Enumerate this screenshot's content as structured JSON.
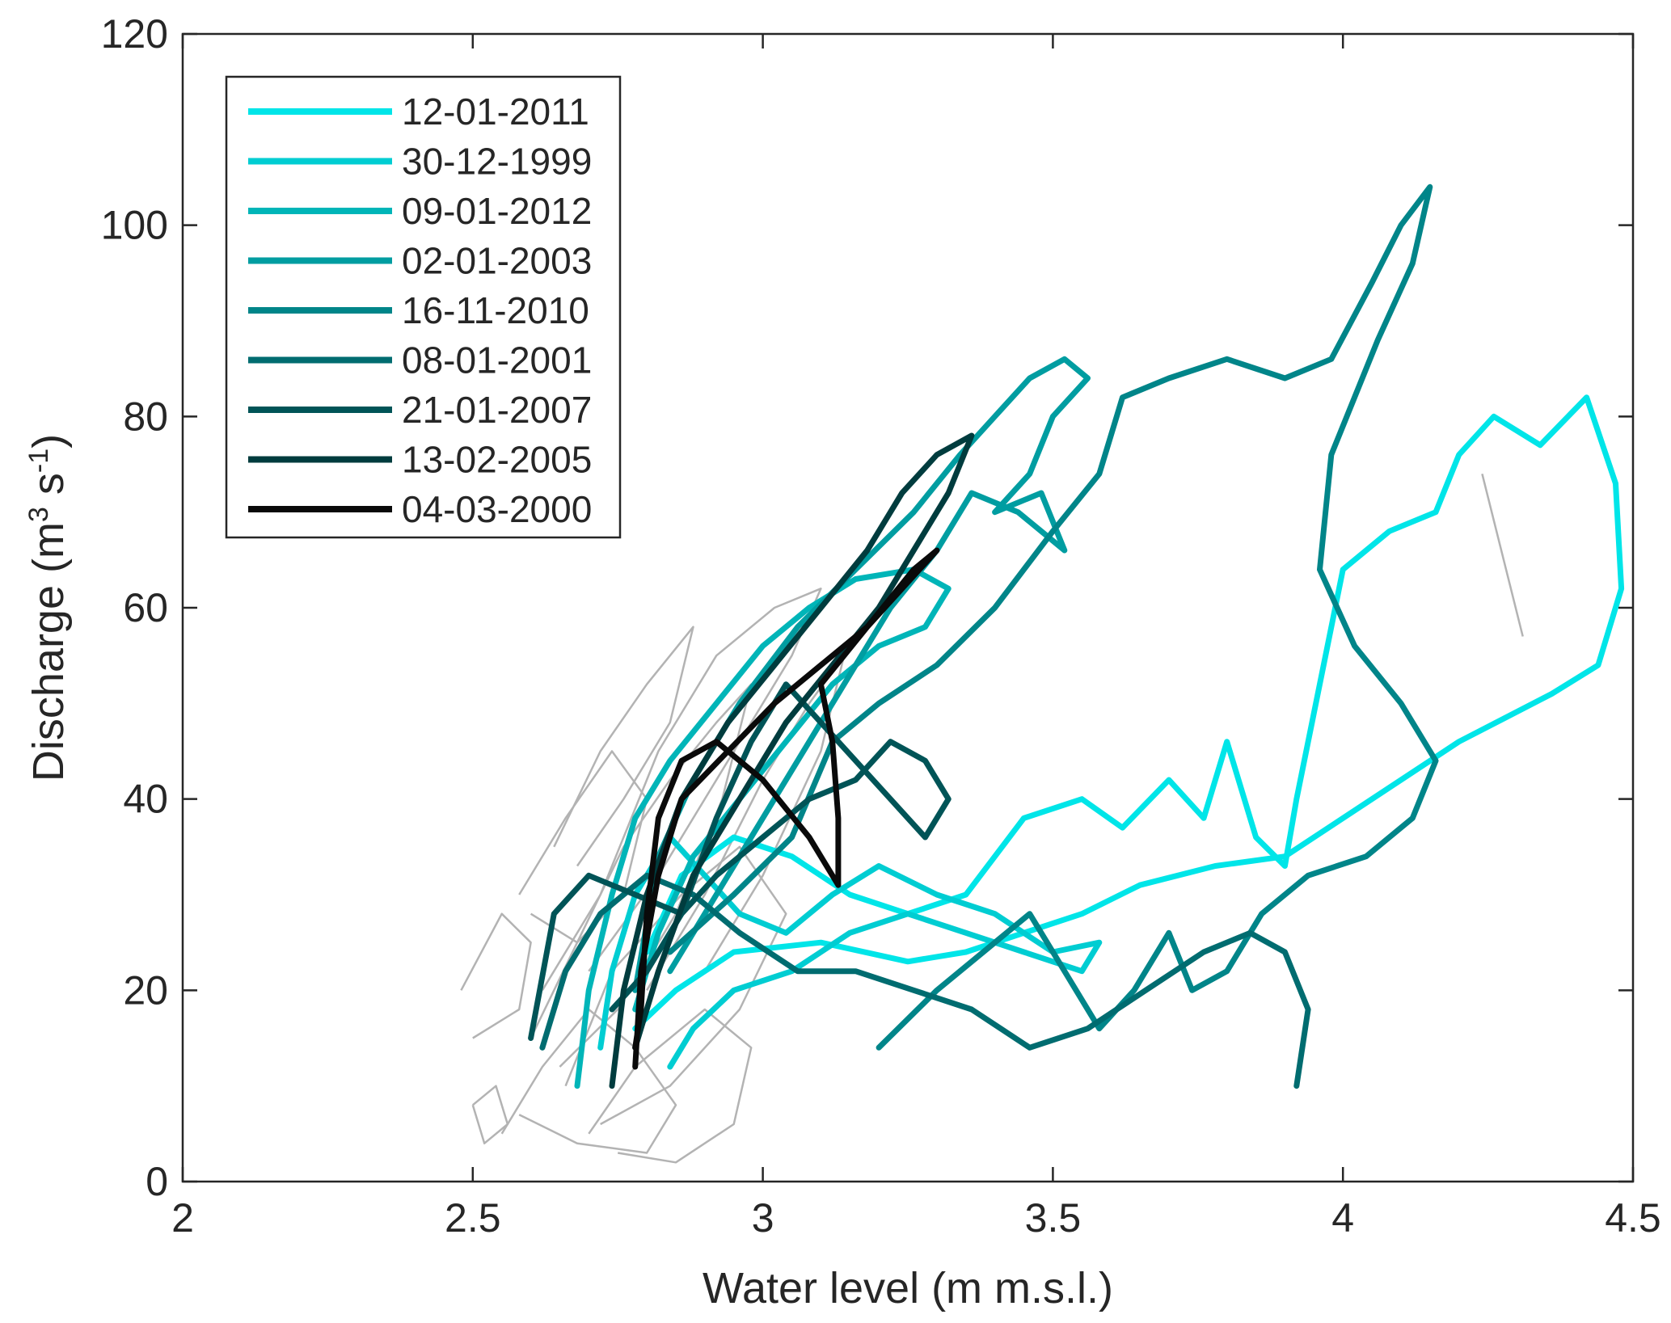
{
  "chart_data": {
    "type": "line",
    "xlabel": "Water level (m m.s.l.)",
    "ylabel": {
      "main": "Discharge (m",
      "sup1": "3",
      "mid": " s",
      "sup2": "-1",
      "end": ")"
    },
    "xlim": [
      2,
      4.5
    ],
    "ylim": [
      0,
      120
    ],
    "xticks": [
      2,
      2.5,
      3,
      3.5,
      4,
      4.5
    ],
    "xtick_labels": [
      "2",
      "2.5",
      "3",
      "3.5",
      "4",
      "4.5"
    ],
    "yticks": [
      0,
      20,
      40,
      60,
      80,
      100,
      120
    ],
    "ytick_labels": [
      "0",
      "20",
      "40",
      "60",
      "80",
      "100",
      "120"
    ],
    "grid": false,
    "legend_position": "top-left",
    "background_color": "#b3b3b3",
    "background": [
      [
        [
          2.55,
          5
        ],
        [
          2.62,
          12
        ],
        [
          2.7,
          18
        ],
        [
          2.78,
          14
        ],
        [
          2.85,
          8
        ],
        [
          2.8,
          3
        ],
        [
          2.68,
          4
        ],
        [
          2.58,
          7
        ]
      ],
      [
        [
          2.6,
          15
        ],
        [
          2.68,
          25
        ],
        [
          2.76,
          35
        ],
        [
          2.84,
          42
        ],
        [
          2.92,
          48
        ],
        [
          2.98,
          52
        ],
        [
          2.93,
          40
        ],
        [
          2.85,
          28
        ],
        [
          2.75,
          18
        ],
        [
          2.65,
          12
        ]
      ],
      [
        [
          2.62,
          20
        ],
        [
          2.72,
          30
        ],
        [
          2.82,
          45
        ],
        [
          2.92,
          55
        ],
        [
          3.02,
          60
        ],
        [
          3.1,
          62
        ],
        [
          3.05,
          55
        ],
        [
          2.95,
          45
        ],
        [
          2.82,
          32
        ],
        [
          2.7,
          22
        ]
      ],
      [
        [
          2.58,
          30
        ],
        [
          2.66,
          38
        ],
        [
          2.74,
          45
        ],
        [
          2.8,
          40
        ],
        [
          2.76,
          30
        ],
        [
          2.68,
          25
        ],
        [
          2.6,
          28
        ]
      ],
      [
        [
          2.7,
          5
        ],
        [
          2.78,
          12
        ],
        [
          2.9,
          18
        ],
        [
          2.98,
          14
        ],
        [
          2.95,
          6
        ],
        [
          2.85,
          2
        ],
        [
          2.75,
          3
        ]
      ],
      [
        [
          2.5,
          8
        ],
        [
          2.52,
          4
        ],
        [
          2.56,
          6
        ],
        [
          2.54,
          10
        ],
        [
          2.5,
          8
        ]
      ],
      [
        [
          2.66,
          10
        ],
        [
          2.74,
          22
        ],
        [
          2.86,
          30
        ],
        [
          2.96,
          35
        ],
        [
          3.04,
          28
        ],
        [
          2.96,
          18
        ],
        [
          2.84,
          10
        ],
        [
          2.72,
          6
        ]
      ],
      [
        [
          2.8,
          20
        ],
        [
          2.9,
          30
        ],
        [
          3.0,
          42
        ],
        [
          3.08,
          50
        ],
        [
          3.14,
          55
        ],
        [
          3.1,
          45
        ],
        [
          3.0,
          32
        ],
        [
          2.9,
          22
        ]
      ],
      [
        [
          2.64,
          35
        ],
        [
          2.72,
          45
        ],
        [
          2.8,
          52
        ],
        [
          2.88,
          58
        ],
        [
          2.84,
          48
        ],
        [
          2.76,
          40
        ],
        [
          2.68,
          33
        ]
      ],
      [
        [
          2.48,
          20
        ],
        [
          2.55,
          28
        ],
        [
          2.6,
          25
        ],
        [
          2.58,
          18
        ],
        [
          2.5,
          15
        ]
      ],
      [
        [
          4.24,
          74
        ],
        [
          4.31,
          57
        ]
      ]
    ],
    "series": [
      {
        "name": "12-01-2011",
        "color": "#00e5e8",
        "points": [
          [
            2.8,
            24
          ],
          [
            2.86,
            32
          ],
          [
            2.95,
            36
          ],
          [
            3.05,
            34
          ],
          [
            3.15,
            30
          ],
          [
            3.25,
            28
          ],
          [
            3.35,
            30
          ],
          [
            3.45,
            38
          ],
          [
            3.55,
            40
          ],
          [
            3.62,
            37
          ],
          [
            3.7,
            42
          ],
          [
            3.76,
            38
          ],
          [
            3.8,
            46
          ],
          [
            3.85,
            36
          ],
          [
            3.9,
            33
          ],
          [
            3.92,
            40
          ],
          [
            3.96,
            52
          ],
          [
            4.0,
            64
          ],
          [
            4.08,
            68
          ],
          [
            4.16,
            70
          ],
          [
            4.2,
            76
          ],
          [
            4.26,
            80
          ],
          [
            4.34,
            77
          ],
          [
            4.42,
            82
          ],
          [
            4.47,
            73
          ],
          [
            4.48,
            62
          ],
          [
            4.44,
            54
          ],
          [
            4.36,
            51
          ],
          [
            4.2,
            46
          ],
          [
            4.05,
            40
          ],
          [
            3.9,
            34
          ],
          [
            3.78,
            33
          ],
          [
            3.65,
            31
          ],
          [
            3.55,
            28
          ],
          [
            3.45,
            26
          ],
          [
            3.35,
            24
          ],
          [
            3.25,
            23
          ],
          [
            3.1,
            25
          ],
          [
            2.95,
            24
          ],
          [
            2.85,
            20
          ],
          [
            2.78,
            16
          ]
        ]
      },
      {
        "name": "30-12-1999",
        "color": "#00cdd2",
        "points": [
          [
            2.72,
            14
          ],
          [
            2.74,
            22
          ],
          [
            2.78,
            30
          ],
          [
            2.84,
            36
          ],
          [
            2.9,
            32
          ],
          [
            2.96,
            28
          ],
          [
            3.04,
            26
          ],
          [
            3.12,
            30
          ],
          [
            3.2,
            33
          ],
          [
            3.3,
            30
          ],
          [
            3.4,
            28
          ],
          [
            3.5,
            24
          ],
          [
            3.58,
            25
          ],
          [
            3.55,
            22
          ],
          [
            3.45,
            24
          ],
          [
            3.35,
            26
          ],
          [
            3.25,
            28
          ],
          [
            3.15,
            26
          ],
          [
            3.05,
            22
          ],
          [
            2.95,
            20
          ],
          [
            2.88,
            16
          ],
          [
            2.84,
            12
          ]
        ]
      },
      {
        "name": "09-01-2012",
        "color": "#00b5b8",
        "points": [
          [
            2.68,
            10
          ],
          [
            2.7,
            20
          ],
          [
            2.74,
            30
          ],
          [
            2.78,
            38
          ],
          [
            2.84,
            44
          ],
          [
            2.92,
            50
          ],
          [
            3.0,
            56
          ],
          [
            3.08,
            60
          ],
          [
            3.16,
            63
          ],
          [
            3.26,
            64
          ],
          [
            3.32,
            62
          ],
          [
            3.28,
            58
          ],
          [
            3.2,
            56
          ],
          [
            3.12,
            52
          ],
          [
            3.04,
            46
          ],
          [
            2.96,
            40
          ],
          [
            2.88,
            34
          ],
          [
            2.82,
            26
          ],
          [
            2.78,
            18
          ]
        ]
      },
      {
        "name": "02-01-2003",
        "color": "#009da1",
        "points": [
          [
            2.78,
            20
          ],
          [
            2.82,
            34
          ],
          [
            2.88,
            42
          ],
          [
            2.96,
            50
          ],
          [
            3.06,
            58
          ],
          [
            3.16,
            64
          ],
          [
            3.26,
            70
          ],
          [
            3.34,
            76
          ],
          [
            3.4,
            80
          ],
          [
            3.46,
            84
          ],
          [
            3.52,
            86
          ],
          [
            3.56,
            84
          ],
          [
            3.5,
            80
          ],
          [
            3.46,
            74
          ],
          [
            3.4,
            70
          ],
          [
            3.48,
            72
          ],
          [
            3.52,
            66
          ],
          [
            3.44,
            70
          ],
          [
            3.36,
            72
          ],
          [
            3.3,
            66
          ],
          [
            3.22,
            60
          ],
          [
            3.14,
            52
          ],
          [
            3.06,
            44
          ],
          [
            2.98,
            36
          ],
          [
            2.9,
            28
          ],
          [
            2.84,
            22
          ]
        ]
      },
      {
        "name": "16-11-2010",
        "color": "#008589",
        "points": [
          [
            2.84,
            24
          ],
          [
            2.95,
            30
          ],
          [
            3.05,
            36
          ],
          [
            3.12,
            46
          ],
          [
            3.2,
            50
          ],
          [
            3.3,
            54
          ],
          [
            3.4,
            60
          ],
          [
            3.5,
            68
          ],
          [
            3.58,
            74
          ],
          [
            3.62,
            82
          ],
          [
            3.7,
            84
          ],
          [
            3.8,
            86
          ],
          [
            3.9,
            84
          ],
          [
            3.98,
            86
          ],
          [
            4.05,
            94
          ],
          [
            4.1,
            100
          ],
          [
            4.15,
            104
          ],
          [
            4.12,
            96
          ],
          [
            4.06,
            88
          ],
          [
            3.98,
            76
          ],
          [
            3.96,
            64
          ],
          [
            4.02,
            56
          ],
          [
            4.1,
            50
          ],
          [
            4.16,
            44
          ],
          [
            4.12,
            38
          ],
          [
            4.04,
            34
          ],
          [
            3.94,
            32
          ],
          [
            3.86,
            28
          ],
          [
            3.8,
            22
          ],
          [
            3.74,
            20
          ],
          [
            3.7,
            26
          ],
          [
            3.64,
            20
          ],
          [
            3.58,
            16
          ],
          [
            3.52,
            22
          ],
          [
            3.46,
            28
          ],
          [
            3.38,
            24
          ],
          [
            3.3,
            20
          ],
          [
            3.2,
            14
          ]
        ]
      },
      {
        "name": "08-01-2001",
        "color": "#006c70",
        "points": [
          [
            2.62,
            14
          ],
          [
            2.66,
            22
          ],
          [
            2.72,
            28
          ],
          [
            2.8,
            32
          ],
          [
            2.88,
            30
          ],
          [
            2.96,
            26
          ],
          [
            3.06,
            22
          ],
          [
            3.16,
            22
          ],
          [
            3.26,
            20
          ],
          [
            3.36,
            18
          ],
          [
            3.46,
            14
          ],
          [
            3.56,
            16
          ],
          [
            3.66,
            20
          ],
          [
            3.76,
            24
          ],
          [
            3.84,
            26
          ],
          [
            3.9,
            24
          ],
          [
            3.94,
            18
          ],
          [
            3.92,
            10
          ]
        ]
      },
      {
        "name": "21-01-2007",
        "color": "#005457",
        "points": [
          [
            2.6,
            15
          ],
          [
            2.64,
            28
          ],
          [
            2.7,
            32
          ],
          [
            2.78,
            30
          ],
          [
            2.86,
            28
          ],
          [
            2.92,
            32
          ],
          [
            3.0,
            36
          ],
          [
            3.08,
            40
          ],
          [
            3.16,
            42
          ],
          [
            3.22,
            46
          ],
          [
            3.28,
            44
          ],
          [
            3.32,
            40
          ],
          [
            3.28,
            36
          ],
          [
            3.22,
            40
          ],
          [
            3.16,
            44
          ],
          [
            3.1,
            48
          ],
          [
            3.04,
            52
          ],
          [
            2.98,
            46
          ],
          [
            2.92,
            38
          ],
          [
            2.86,
            28
          ],
          [
            2.8,
            22
          ],
          [
            2.74,
            18
          ]
        ]
      },
      {
        "name": "13-02-2005",
        "color": "#003c3e",
        "points": [
          [
            2.74,
            10
          ],
          [
            2.76,
            20
          ],
          [
            2.8,
            30
          ],
          [
            2.86,
            40
          ],
          [
            2.94,
            48
          ],
          [
            3.02,
            54
          ],
          [
            3.1,
            60
          ],
          [
            3.18,
            66
          ],
          [
            3.24,
            72
          ],
          [
            3.3,
            76
          ],
          [
            3.36,
            78
          ],
          [
            3.32,
            72
          ],
          [
            3.26,
            66
          ],
          [
            3.2,
            60
          ],
          [
            3.12,
            54
          ],
          [
            3.04,
            48
          ],
          [
            2.96,
            40
          ],
          [
            2.88,
            32
          ],
          [
            2.82,
            22
          ],
          [
            2.78,
            14
          ]
        ]
      },
      {
        "name": "04-03-2000",
        "color": "#0a0a0a",
        "points": [
          [
            2.78,
            12
          ],
          [
            2.79,
            22
          ],
          [
            2.82,
            32
          ],
          [
            2.86,
            40
          ],
          [
            2.94,
            45
          ],
          [
            3.02,
            50
          ],
          [
            3.1,
            54
          ],
          [
            3.18,
            58
          ],
          [
            3.24,
            62
          ],
          [
            3.3,
            66
          ],
          [
            3.26,
            64
          ],
          [
            3.18,
            58
          ],
          [
            3.1,
            52
          ],
          [
            3.12,
            46
          ],
          [
            3.13,
            38
          ],
          [
            3.13,
            31
          ],
          [
            3.08,
            36
          ],
          [
            3.0,
            42
          ],
          [
            2.92,
            46
          ],
          [
            2.86,
            44
          ],
          [
            2.82,
            38
          ],
          [
            2.8,
            28
          ],
          [
            2.79,
            18
          ],
          [
            2.78,
            14
          ]
        ]
      }
    ]
  }
}
